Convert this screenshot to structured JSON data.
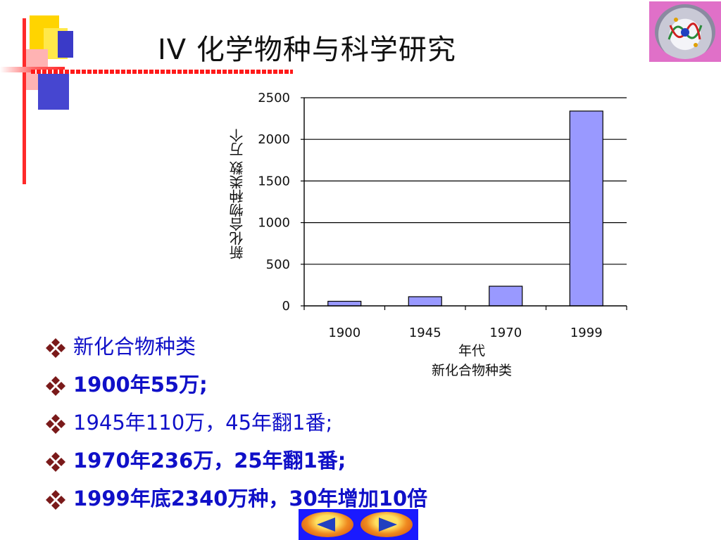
{
  "slide": {
    "title": "IV  化学物种与科学研究",
    "legend_text": "新化合物种类",
    "bullets": [
      {
        "text": "新化合物种类",
        "bold": false
      },
      {
        "text": "1900年55万;",
        "bold": true
      },
      {
        "text": "1945年110万，45年翻1番;",
        "bold": false
      },
      {
        "text": "1970年236万，25年翻1番;",
        "bold": true
      },
      {
        "text": "1999年底2340万种，30年增加10倍",
        "bold": true
      }
    ]
  },
  "colors": {
    "bar_fill": "#9999ff",
    "title_text": "#111111",
    "bullet_text": "#1010c8",
    "bullet_icon": "#7a1a1a",
    "accent_red": "#ff2a2a",
    "nav_bg": "#1a1aff"
  },
  "icons": {
    "bullet": "diamond-cluster-icon",
    "prev": "arrow-left-icon",
    "next": "arrow-right-icon",
    "logo": "emblem-logo"
  },
  "chart_data": {
    "type": "bar",
    "categories": [
      "1900",
      "1945",
      "1970",
      "1999"
    ],
    "values": [
      55,
      110,
      236,
      2340
    ],
    "xlabel": "年代",
    "ylabel": "新化合物种类数  万个",
    "ylim": [
      0,
      2500
    ],
    "yticks": [
      0,
      500,
      1000,
      1500,
      2000,
      2500
    ],
    "grid": true,
    "legend": "bottom"
  }
}
